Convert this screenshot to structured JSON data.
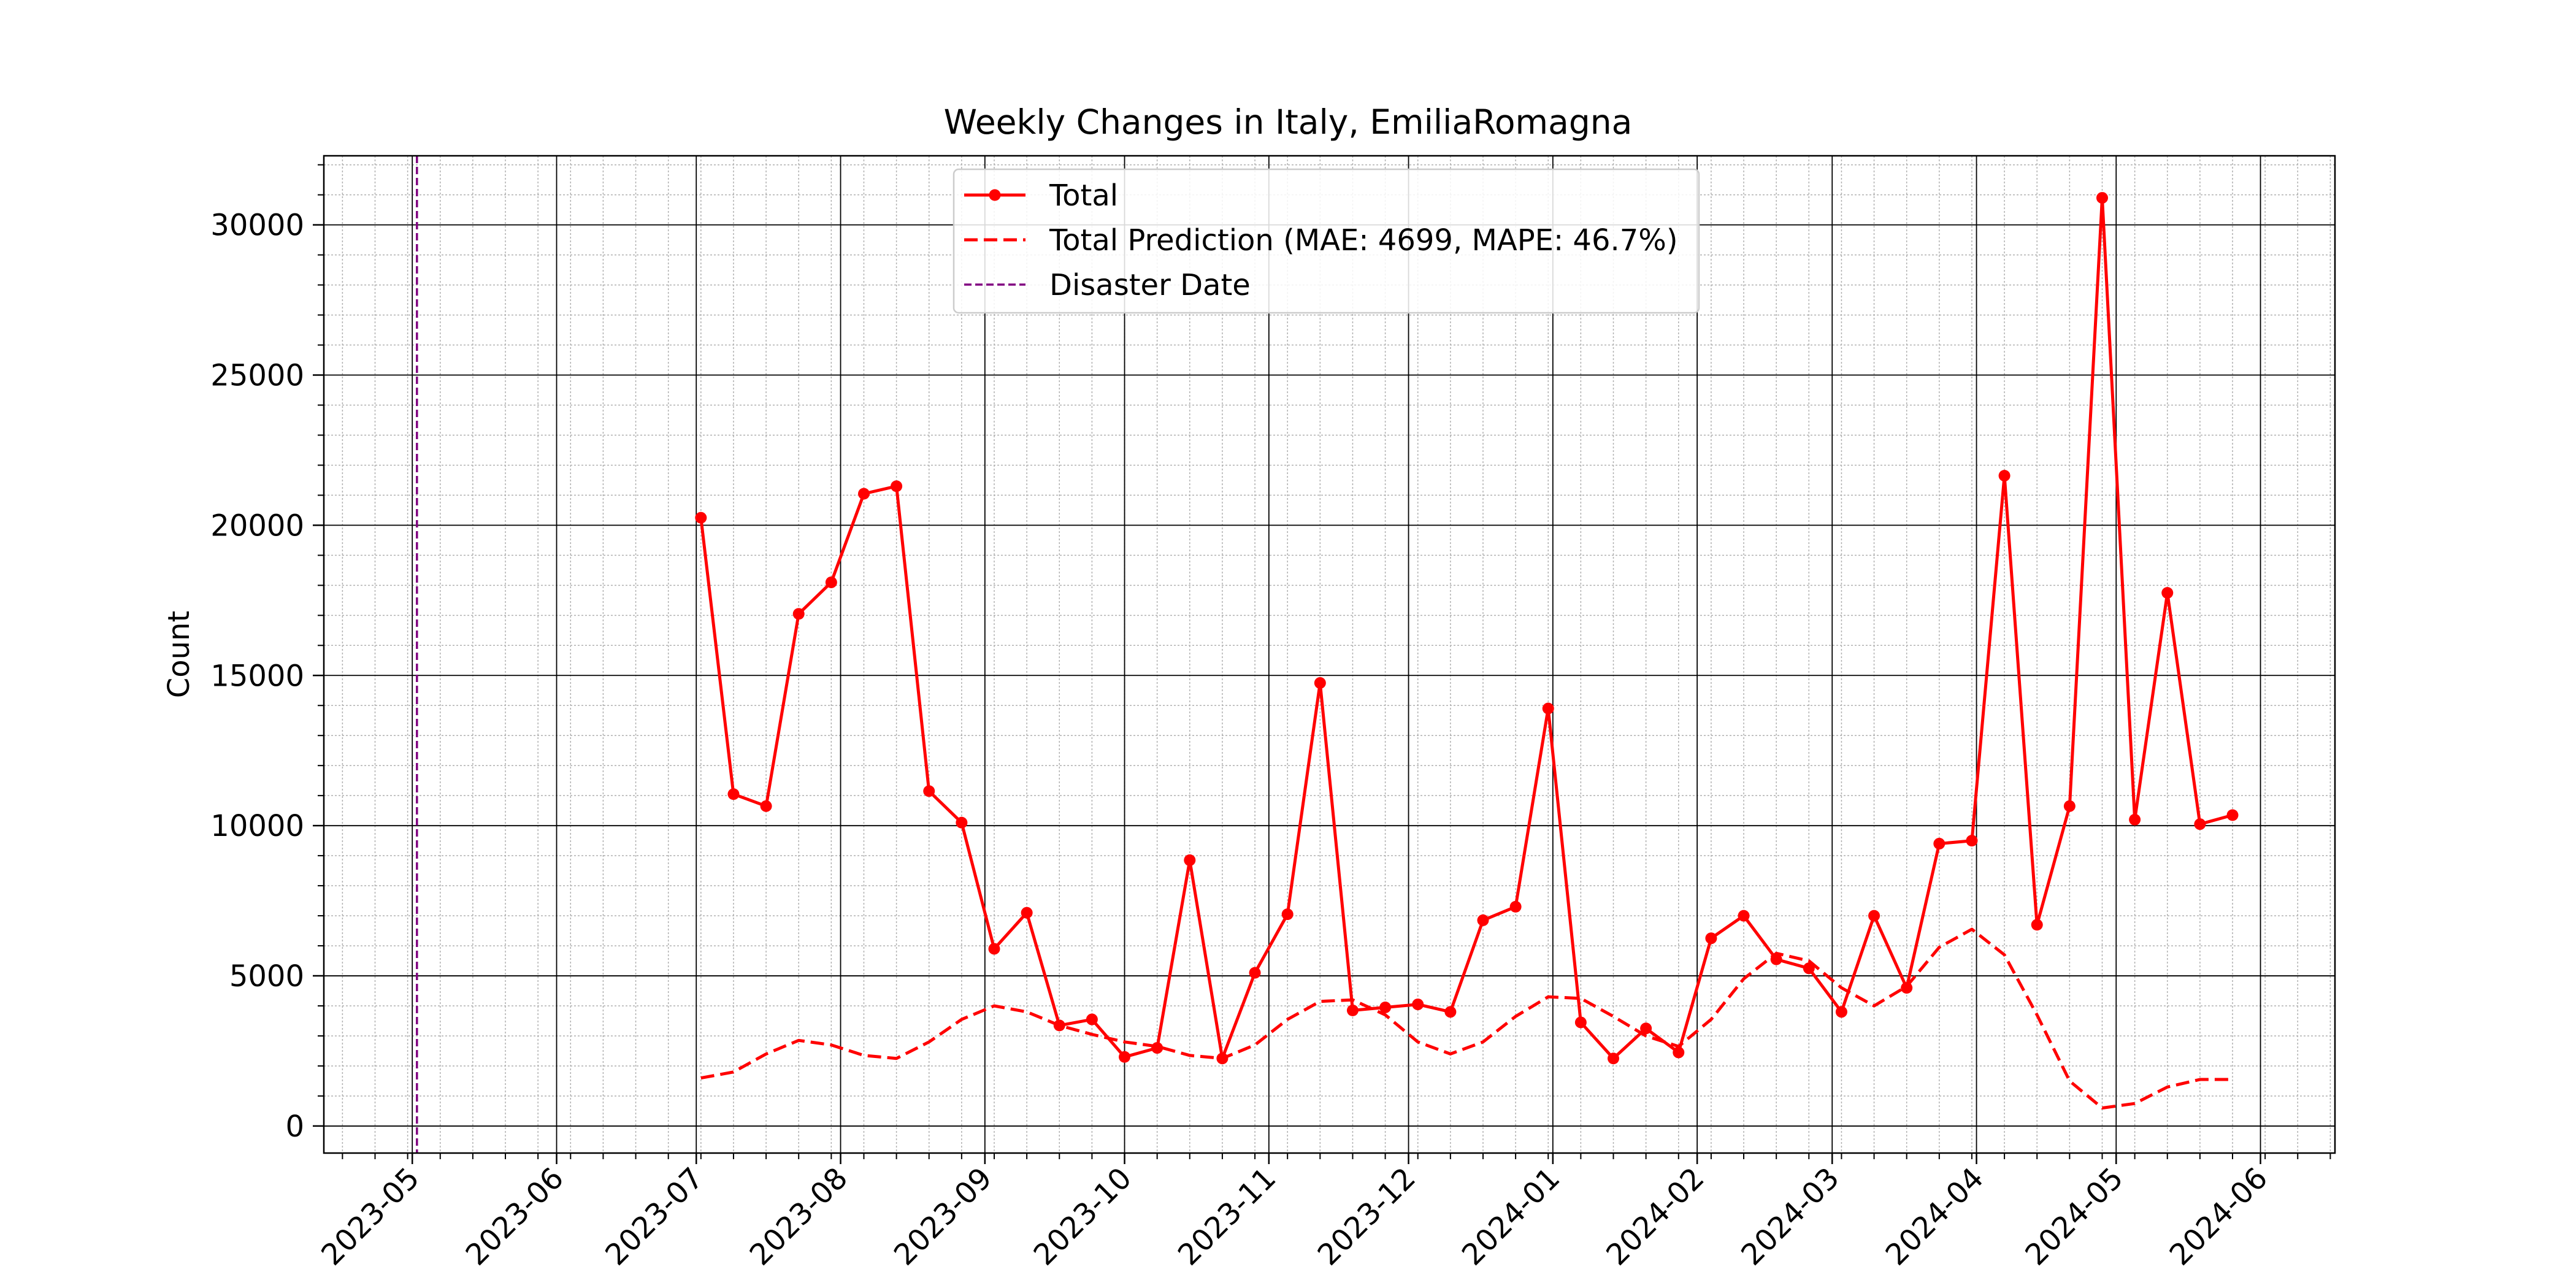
{
  "chart_data": {
    "type": "line",
    "title": "Weekly Changes in Italy, EmiliaRomagna",
    "xlabel": "",
    "ylabel": "Count",
    "xlim": [
      "2023-04-12",
      "2024-06-17"
    ],
    "ylim": [
      -900,
      32300
    ],
    "x_tick_labels": [
      "2023-05",
      "2023-06",
      "2023-07",
      "2023-08",
      "2023-09",
      "2023-10",
      "2023-11",
      "2023-12",
      "2024-01",
      "2024-02",
      "2024-03",
      "2024-04",
      "2024-05",
      "2024-06"
    ],
    "x_ticks": [
      "2023-05-01",
      "2023-06-01",
      "2023-07-01",
      "2023-08-01",
      "2023-09-01",
      "2023-10-01",
      "2023-11-01",
      "2023-12-01",
      "2024-01-01",
      "2024-02-01",
      "2024-03-01",
      "2024-04-01",
      "2024-05-01",
      "2024-06-01"
    ],
    "y_ticks": [
      0,
      5000,
      10000,
      15000,
      20000,
      25000,
      30000
    ],
    "y_tick_labels": [
      "0",
      "5000",
      "10000",
      "15000",
      "20000",
      "25000",
      "30000"
    ],
    "grid": true,
    "minor_grid": true,
    "legend_position": "top-center",
    "disaster_date": "2023-05-02",
    "x": [
      "2023-07-02",
      "2023-07-09",
      "2023-07-16",
      "2023-07-23",
      "2023-07-30",
      "2023-08-06",
      "2023-08-13",
      "2023-08-20",
      "2023-08-27",
      "2023-09-03",
      "2023-09-10",
      "2023-09-17",
      "2023-09-24",
      "2023-10-01",
      "2023-10-08",
      "2023-10-15",
      "2023-10-22",
      "2023-10-29",
      "2023-11-05",
      "2023-11-12",
      "2023-11-19",
      "2023-11-26",
      "2023-12-03",
      "2023-12-10",
      "2023-12-17",
      "2023-12-24",
      "2023-12-31",
      "2024-01-07",
      "2024-01-14",
      "2024-01-21",
      "2024-01-28",
      "2024-02-04",
      "2024-02-11",
      "2024-02-18",
      "2024-02-25",
      "2024-03-03",
      "2024-03-10",
      "2024-03-17",
      "2024-03-24",
      "2024-03-31",
      "2024-04-07",
      "2024-04-14",
      "2024-04-21",
      "2024-04-28",
      "2024-05-05",
      "2024-05-12",
      "2024-05-19",
      "2024-05-26"
    ],
    "series": [
      {
        "name": "Total",
        "color": "#ff0000",
        "style": "solid-markers",
        "values": [
          20250,
          11050,
          10650,
          17050,
          18100,
          21050,
          21300,
          11150,
          10100,
          5900,
          7100,
          3350,
          3550,
          2300,
          2600,
          8850,
          2250,
          5100,
          7050,
          14750,
          3850,
          3950,
          4050,
          3800,
          6850,
          7300,
          13900,
          3450,
          2250,
          3250,
          2450,
          6250,
          7000,
          5550,
          5250,
          3800,
          7000,
          4600,
          9400,
          9500,
          21650,
          6700,
          10650,
          30900,
          10200,
          17750,
          10050,
          10350
        ]
      },
      {
        "name": "Total Prediction (MAE: 4699, MAPE: 46.7%)",
        "color": "#ff0000",
        "style": "dashed",
        "values": [
          1600,
          1800,
          2400,
          2850,
          2700,
          2350,
          2250,
          2800,
          3550,
          4000,
          3800,
          3350,
          3050,
          2800,
          2650,
          2350,
          2250,
          2700,
          3550,
          4150,
          4200,
          3700,
          2800,
          2400,
          2800,
          3650,
          4300,
          4250,
          3650,
          3000,
          2650,
          3550,
          4900,
          5750,
          5500,
          4600,
          4000,
          4650,
          5950,
          6550,
          5700,
          3700,
          1500,
          600,
          750,
          1300,
          1550,
          1550
        ]
      }
    ],
    "legend": [
      {
        "label": "Total",
        "color": "#ff0000",
        "style": "solid-markers"
      },
      {
        "label": "Total Prediction (MAE: 4699, MAPE: 46.7%)",
        "color": "#ff0000",
        "style": "dashed"
      },
      {
        "label": "Disaster Date",
        "color": "#800080",
        "style": "dashed"
      }
    ]
  }
}
